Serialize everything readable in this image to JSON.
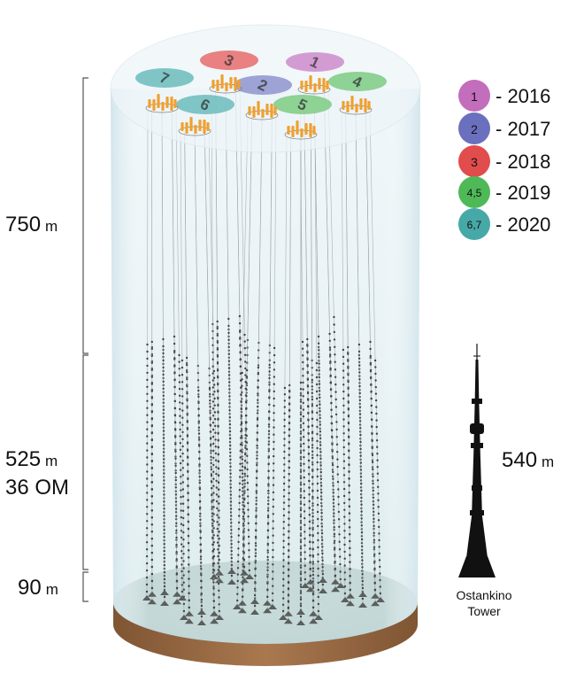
{
  "dimensions": {
    "upper": {
      "value": "750",
      "unit": "m"
    },
    "middle": {
      "value": "525",
      "unit": "m",
      "sub": "36 OM"
    },
    "lower": {
      "value": "90",
      "unit": "m"
    }
  },
  "tower": {
    "height_value": "540",
    "height_unit": "m",
    "name_line1": "Ostankino",
    "name_line2": "Tower"
  },
  "clusters": [
    {
      "label": "1",
      "color": "#cc8ccb"
    },
    {
      "label": "2",
      "color": "#8f94cf"
    },
    {
      "label": "3",
      "color": "#e86b6b"
    },
    {
      "label": "4",
      "color": "#7dcb83"
    },
    {
      "label": "5",
      "color": "#7dcb83"
    },
    {
      "label": "6",
      "color": "#6bbcbc"
    },
    {
      "label": "7",
      "color": "#6bbcbc"
    }
  ],
  "legend": [
    {
      "badge": "1",
      "year": "- 2016",
      "color": "#c36dbd"
    },
    {
      "badge": "2",
      "year": "- 2017",
      "color": "#6a70bd"
    },
    {
      "badge": "3",
      "year": "- 2018",
      "color": "#e14c4c"
    },
    {
      "badge": "4,5",
      "year": "- 2019",
      "color": "#4fb957"
    },
    {
      "badge": "6,7",
      "year": "- 2020",
      "color": "#47a8a8"
    }
  ],
  "colors": {
    "water_top": "#e6f1f6",
    "water_bottom": "#d6e9ec",
    "seabed": "#5f7d70",
    "base_rim": "#9a6a44",
    "string_line": "#9aa0a4",
    "module": "#444444",
    "anchor": "#5a5f5c",
    "instrument": "#f0a030"
  }
}
